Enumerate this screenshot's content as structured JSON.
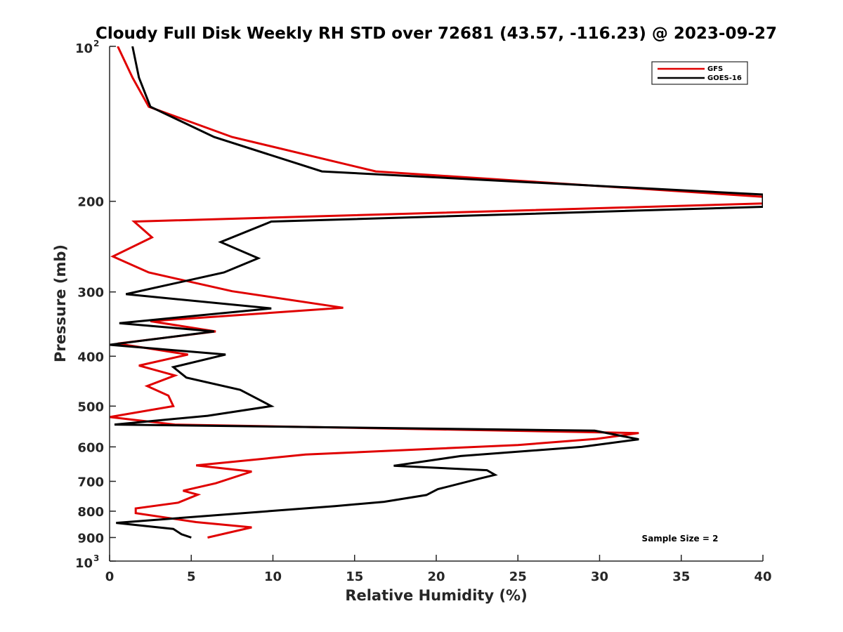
{
  "chart_data": {
    "type": "line",
    "title": "Cloudy Full Disk Weekly RH STD over 72681 (43.57, -116.23) @ 2023-09-27",
    "xlabel": "Relative Humidity (%)",
    "ylabel": "Pressure (mb)",
    "xlim": [
      0,
      40
    ],
    "ylim": [
      100,
      1000
    ],
    "y_scale": "log",
    "y_reversed": true,
    "grid": false,
    "legend_position": "top-right",
    "x_ticks": [
      "0",
      "5",
      "10",
      "15",
      "20",
      "25",
      "30",
      "35",
      "40"
    ],
    "y_ticks": [
      {
        "value": 100,
        "base": "10",
        "exp": "2"
      },
      {
        "value": 200,
        "label": "200"
      },
      {
        "value": 300,
        "label": "300"
      },
      {
        "value": 400,
        "label": "400"
      },
      {
        "value": 500,
        "label": "500"
      },
      {
        "value": 600,
        "label": "600"
      },
      {
        "value": 700,
        "label": "700"
      },
      {
        "value": 800,
        "label": "800"
      },
      {
        "value": 900,
        "label": "900"
      },
      {
        "value": 1000,
        "base": "10",
        "exp": "3"
      }
    ],
    "series": [
      {
        "name": "GFS",
        "color": "#e00000",
        "points": [
          [
            0.5,
            100
          ],
          [
            1.4,
            115
          ],
          [
            2.4,
            131
          ],
          [
            7.5,
            150
          ],
          [
            16.3,
            175
          ],
          [
            40,
            196
          ],
          [
            40,
            202
          ],
          [
            1.5,
            219
          ],
          [
            2.6,
            235
          ],
          [
            0.2,
            256
          ],
          [
            2.4,
            275
          ],
          [
            7.5,
            299
          ],
          [
            14.3,
            322
          ],
          [
            2.5,
            342
          ],
          [
            6.5,
            358
          ],
          [
            0.5,
            378
          ],
          [
            4.8,
            397
          ],
          [
            1.8,
            417
          ],
          [
            4.0,
            436
          ],
          [
            2.3,
            457
          ],
          [
            3.6,
            477
          ],
          [
            3.9,
            500
          ],
          [
            0.0,
            525
          ],
          [
            4.0,
            543
          ],
          [
            32.4,
            564
          ],
          [
            29.8,
            579
          ],
          [
            25.0,
            595
          ],
          [
            12.0,
            621
          ],
          [
            5.3,
            652
          ],
          [
            8.7,
            670
          ],
          [
            6.5,
            706
          ],
          [
            4.5,
            730
          ],
          [
            5.4,
            743
          ],
          [
            4.2,
            770
          ],
          [
            1.6,
            790
          ],
          [
            1.6,
            807
          ],
          [
            5.3,
            840
          ],
          [
            8.7,
            860
          ],
          [
            6.0,
            900
          ]
        ]
      },
      {
        "name": "GOES-16",
        "color": "#000000",
        "points": [
          [
            1.4,
            100
          ],
          [
            1.8,
            115
          ],
          [
            2.5,
            131
          ],
          [
            6.4,
            150
          ],
          [
            13.0,
            175
          ],
          [
            40,
            194
          ],
          [
            40,
            205
          ],
          [
            9.9,
            219
          ],
          [
            6.8,
            240
          ],
          [
            9.1,
            258
          ],
          [
            7.0,
            275
          ],
          [
            1.0,
            303
          ],
          [
            9.9,
            323
          ],
          [
            0.6,
            345
          ],
          [
            6.4,
            358
          ],
          [
            0.0,
            380
          ],
          [
            7.1,
            397
          ],
          [
            3.9,
            420
          ],
          [
            4.7,
            440
          ],
          [
            8.0,
            465
          ],
          [
            9.0,
            483
          ],
          [
            9.9,
            500
          ],
          [
            6.0,
            522
          ],
          [
            0.3,
            543
          ],
          [
            29.7,
            558
          ],
          [
            32.4,
            580
          ],
          [
            28.9,
            600
          ],
          [
            21.5,
            625
          ],
          [
            17.4,
            653
          ],
          [
            23.1,
            666
          ],
          [
            23.6,
            680
          ],
          [
            22.6,
            692
          ],
          [
            20.1,
            725
          ],
          [
            19.4,
            744
          ],
          [
            16.8,
            767
          ],
          [
            13.8,
            782
          ],
          [
            0.4,
            843
          ],
          [
            3.9,
            866
          ],
          [
            4.4,
            887
          ],
          [
            5.0,
            900
          ]
        ]
      }
    ],
    "annotation": "Sample Size = 2"
  }
}
